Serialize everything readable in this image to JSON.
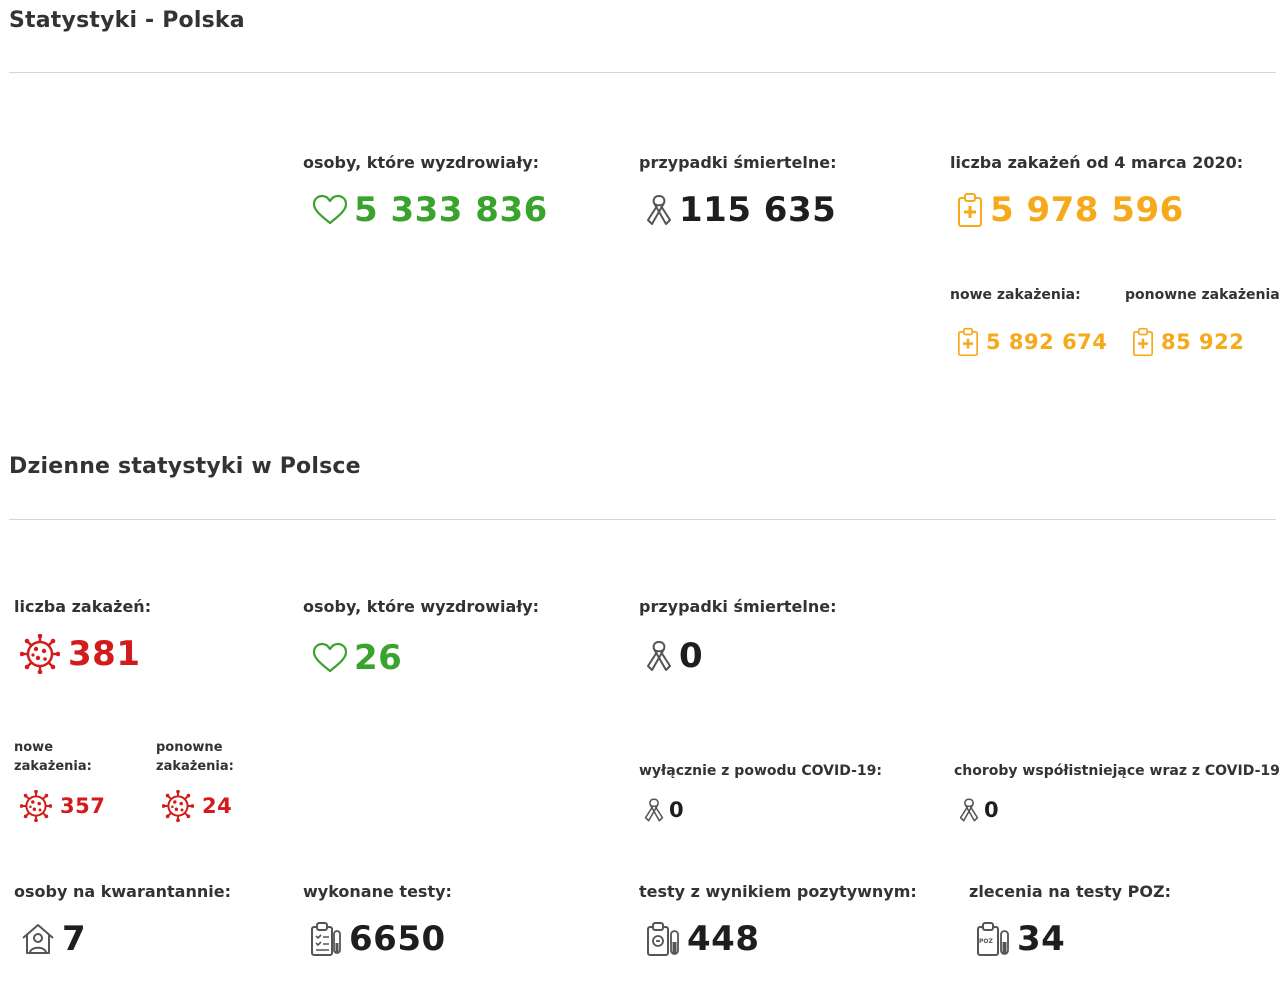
{
  "overall": {
    "title": "Statystyki - Polska",
    "recovered": {
      "label": "osoby, które wyzdrowiały:",
      "value": "5 333 836"
    },
    "deaths": {
      "label": "przypadki śmiertelne:",
      "value": "115 635"
    },
    "infections": {
      "label": "liczba zakażeń od 4 marca 2020:",
      "value": "5 978 596"
    },
    "new_infections": {
      "label": "nowe zakażenia:",
      "value": "5 892 674"
    },
    "re_infections": {
      "label": "ponowne zakażenia:",
      "value": "85 922"
    }
  },
  "daily": {
    "title": "Dzienne statystyki w Polsce",
    "infections": {
      "label": "liczba zakażeń:",
      "value": "381"
    },
    "recovered": {
      "label": "osoby, które wyzdrowiały:",
      "value": "26"
    },
    "deaths": {
      "label": "przypadki śmiertelne:",
      "value": "0"
    },
    "new_infections": {
      "label_line1": "nowe",
      "label_line2": "zakażenia:",
      "value": "357"
    },
    "re_infections": {
      "label_line1": "ponowne",
      "label_line2": "zakażenia:",
      "value": "24"
    },
    "covid_only_deaths": {
      "label": "wyłącznie z powodu COVID-19:",
      "value": "0"
    },
    "comorbid_deaths": {
      "label": "choroby współistniejące wraz z COVID-19:",
      "value": "0"
    },
    "quarantine": {
      "label": "osoby na kwarantannie:",
      "value": "7"
    },
    "tests": {
      "label": "wykonane testy:",
      "value": "6650"
    },
    "positive_tests": {
      "label": "testy z wynikiem pozytywnym:",
      "value": "448"
    },
    "poz_orders": {
      "label": "zlecenia na testy POZ:",
      "value": "34",
      "icon_text": "POZ"
    }
  },
  "colors": {
    "recovered": "#3aa32d",
    "infections_total": "#f6a91b",
    "infections_daily": "#d21b1b",
    "deaths": "#1e1e1e"
  },
  "icons": [
    "heart-icon",
    "ribbon-icon",
    "clipboard-cross-icon",
    "virus-icon",
    "house-person-icon",
    "clipboard-list-icon",
    "test-tube-icon",
    "poz-test-icon"
  ]
}
